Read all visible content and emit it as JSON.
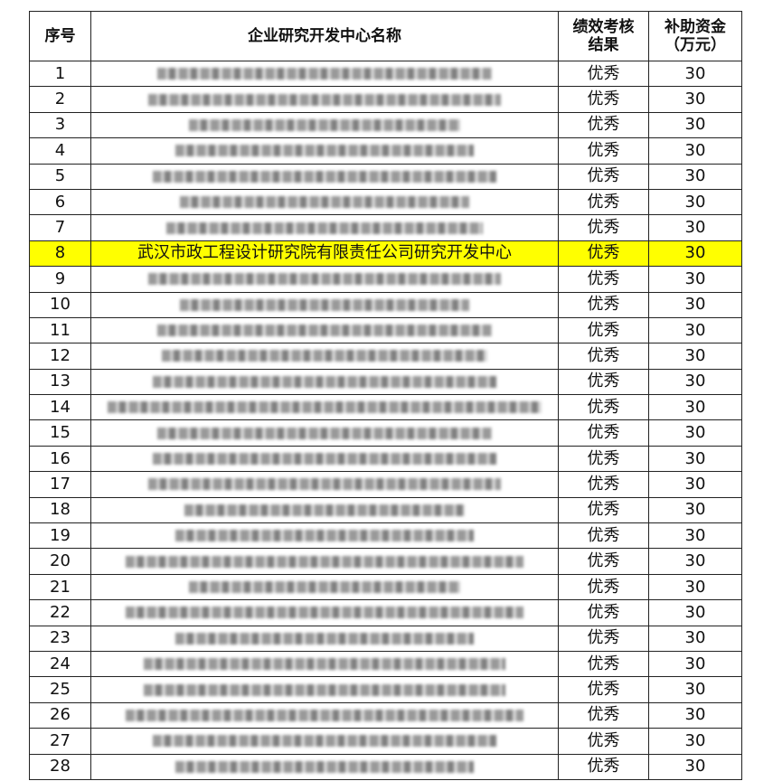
{
  "header": {
    "no": "序号",
    "name": "企业研究开发中心名称",
    "result": [
      "绩效考核",
      "结果"
    ],
    "amount": [
      "补助资金",
      "（万元）"
    ]
  },
  "rows": [
    {
      "no": 1,
      "result": "优秀",
      "amount": 30
    },
    {
      "no": 2,
      "result": "优秀",
      "amount": 30
    },
    {
      "no": 3,
      "result": "优秀",
      "amount": 30
    },
    {
      "no": 4,
      "result": "优秀",
      "amount": 30
    },
    {
      "no": 5,
      "result": "优秀",
      "amount": 30
    },
    {
      "no": 6,
      "result": "优秀",
      "amount": 30
    },
    {
      "no": 7,
      "result": "优秀",
      "amount": 30
    },
    {
      "no": 8,
      "name": "武汉市政工程设计研究院有限责任公司研究开发中心",
      "result": "优秀",
      "amount": 30,
      "highlight": true
    },
    {
      "no": 9,
      "result": "优秀",
      "amount": 30
    },
    {
      "no": 10,
      "result": "优秀",
      "amount": 30
    },
    {
      "no": 11,
      "result": "优秀",
      "amount": 30
    },
    {
      "no": 12,
      "result": "优秀",
      "amount": 30
    },
    {
      "no": 13,
      "result": "优秀",
      "amount": 30
    },
    {
      "no": 14,
      "result": "优秀",
      "amount": 30
    },
    {
      "no": 15,
      "result": "优秀",
      "amount": 30
    },
    {
      "no": 16,
      "result": "优秀",
      "amount": 30
    },
    {
      "no": 17,
      "result": "优秀",
      "amount": 30
    },
    {
      "no": 18,
      "result": "优秀",
      "amount": 30
    },
    {
      "no": 19,
      "result": "优秀",
      "amount": 30
    },
    {
      "no": 20,
      "result": "优秀",
      "amount": 30
    },
    {
      "no": 21,
      "result": "优秀",
      "amount": 30
    },
    {
      "no": 22,
      "result": "优秀",
      "amount": 30
    },
    {
      "no": 23,
      "result": "优秀",
      "amount": 30
    },
    {
      "no": 24,
      "result": "优秀",
      "amount": 30
    },
    {
      "no": 25,
      "result": "优秀",
      "amount": 30
    },
    {
      "no": 26,
      "result": "优秀",
      "amount": 30
    },
    {
      "no": 27,
      "result": "优秀",
      "amount": 30
    },
    {
      "no": 28,
      "result": "优秀",
      "amount": 30
    }
  ]
}
